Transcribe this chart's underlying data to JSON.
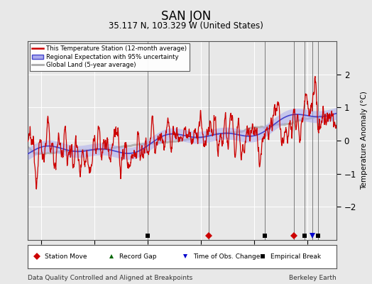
{
  "title": "SAN JON",
  "subtitle": "35.117 N, 103.329 W (United States)",
  "ylabel": "Temperature Anomaly (°C)",
  "footer_left": "Data Quality Controlled and Aligned at Breakpoints",
  "footer_right": "Berkeley Earth",
  "ylim": [
    -3,
    3
  ],
  "xlim": [
    1895,
    2011
  ],
  "xticks": [
    1900,
    1920,
    1940,
    1960,
    1980,
    2000
  ],
  "yticks": [
    -2,
    -1,
    0,
    1,
    2
  ],
  "background_color": "#e8e8e8",
  "plot_bg_color": "#e8e8e8",
  "station_color": "#cc0000",
  "regional_color": "#4444cc",
  "regional_fill_color": "#aaaaee",
  "global_color": "#aaaaaa",
  "legend_items": [
    "This Temperature Station (12-month average)",
    "Regional Expectation with 95% uncertainty",
    "Global Land (5-year average)"
  ],
  "markers": {
    "station_move": {
      "years": [
        1963,
        1995
      ],
      "color": "#cc0000",
      "marker": "D"
    },
    "record_gap": {
      "years": [],
      "color": "#006600",
      "marker": "^"
    },
    "time_obs_change": {
      "years": [
        2002
      ],
      "color": "#0000cc",
      "marker": "v"
    },
    "empirical_break": {
      "years": [
        1940,
        1984,
        1999,
        2004
      ],
      "color": "#000000",
      "marker": "s"
    }
  }
}
